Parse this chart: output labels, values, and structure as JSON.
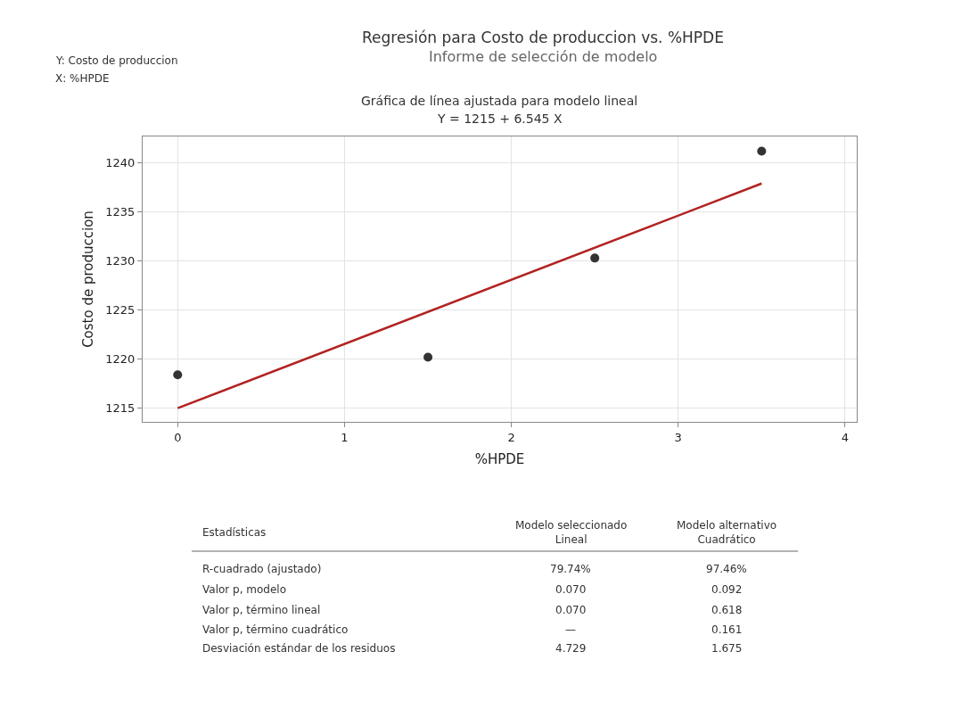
{
  "chart_data": {
    "type": "scatter",
    "title": "Regresión para Costo de produccion vs. %HPDE",
    "subtitle": "Informe de selección de modelo",
    "xlabel": "%HPDE",
    "ylabel": "Costo de produccion",
    "xlim": [
      -0.21,
      4.07
    ],
    "xticks": [
      0,
      1,
      2,
      3,
      4
    ],
    "ylim": [
      1213.6,
      1242.7
    ],
    "yticks": [
      1215,
      1220,
      1225,
      1230,
      1235,
      1240
    ],
    "grid": true,
    "marker": "circle",
    "series": [
      {
        "color": "#333333",
        "x": [
          0,
          1.5,
          2.5,
          3.5
        ],
        "values": [
          1218.4,
          1220.2,
          1230.3,
          1241.2
        ]
      },
      {
        "type": "line",
        "color": "#b22222",
        "line_style": "solid",
        "marker": "none",
        "x": [
          0,
          3.5
        ],
        "values": [
          1215,
          1237.9
        ]
      }
    ],
    "annotations": [
      "Y: Costo de produccion",
      "X: %HPDE",
      "Gráfica de línea ajustada para modelo lineal",
      "Y = 1215 + 6.545 X",
      "Estadísticas",
      "Modelo seleccionado\nLineal",
      "Modelo alternativo\nCuadrático",
      "R-cuadrado (ajustado)",
      "79.74%",
      "97.46%",
      "Valor p, modelo",
      "0.070",
      "0.092",
      "Valor p, término lineal",
      "0.070",
      "0.618",
      "Valor p, término cuadrático",
      "—",
      "0.161",
      "Desviación estándar de los residuos",
      "4.729",
      "1.675"
    ]
  }
}
